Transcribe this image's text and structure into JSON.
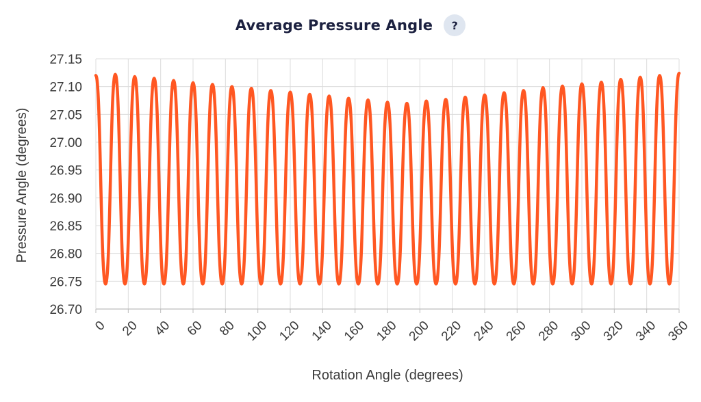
{
  "header": {
    "title": "Average Pressure Angle",
    "help_label": "?"
  },
  "chart_data": {
    "type": "line",
    "xlabel": "Rotation Angle (degrees)",
    "ylabel": "Pressure Angle (degrees)",
    "xlim": [
      0,
      360
    ],
    "ylim": [
      26.7,
      27.15
    ],
    "x_ticks": [
      0,
      20,
      40,
      60,
      80,
      100,
      120,
      140,
      160,
      180,
      200,
      220,
      240,
      260,
      280,
      300,
      320,
      340,
      360
    ],
    "y_ticks": [
      "26.70",
      "26.75",
      "26.80",
      "26.85",
      "26.90",
      "26.95",
      "27.00",
      "27.05",
      "27.10",
      "27.15"
    ],
    "grid": true,
    "line_color": "#ff5722",
    "series": [
      {
        "x": [
          0,
          6,
          12,
          18,
          24,
          30,
          36,
          42,
          48,
          54,
          60,
          66,
          72,
          78,
          84,
          90,
          96,
          102,
          108,
          114,
          120,
          126,
          132,
          138,
          144,
          150,
          156,
          162,
          168,
          174,
          180,
          186,
          192,
          198,
          204,
          210,
          216,
          222,
          228,
          234,
          240,
          246,
          252,
          258,
          264,
          270,
          276,
          282,
          288,
          294,
          300,
          306,
          312,
          318,
          324,
          330,
          336,
          342,
          348,
          354,
          360
        ],
        "y": [
          27.12,
          26.745,
          27.122,
          26.745,
          27.118,
          26.745,
          27.115,
          26.745,
          27.111,
          26.745,
          27.107,
          26.745,
          27.104,
          26.745,
          27.1,
          26.745,
          27.097,
          26.745,
          27.093,
          26.745,
          27.09,
          26.745,
          27.086,
          26.745,
          27.083,
          26.745,
          27.079,
          26.745,
          27.076,
          26.745,
          27.072,
          26.745,
          27.07,
          26.745,
          27.074,
          26.745,
          27.077,
          26.745,
          27.081,
          26.745,
          27.085,
          26.745,
          27.089,
          26.745,
          27.093,
          26.745,
          27.098,
          26.745,
          27.101,
          26.745,
          27.105,
          26.745,
          27.108,
          26.745,
          27.113,
          26.745,
          27.117,
          26.745,
          27.12,
          26.745,
          27.124
        ]
      }
    ]
  }
}
